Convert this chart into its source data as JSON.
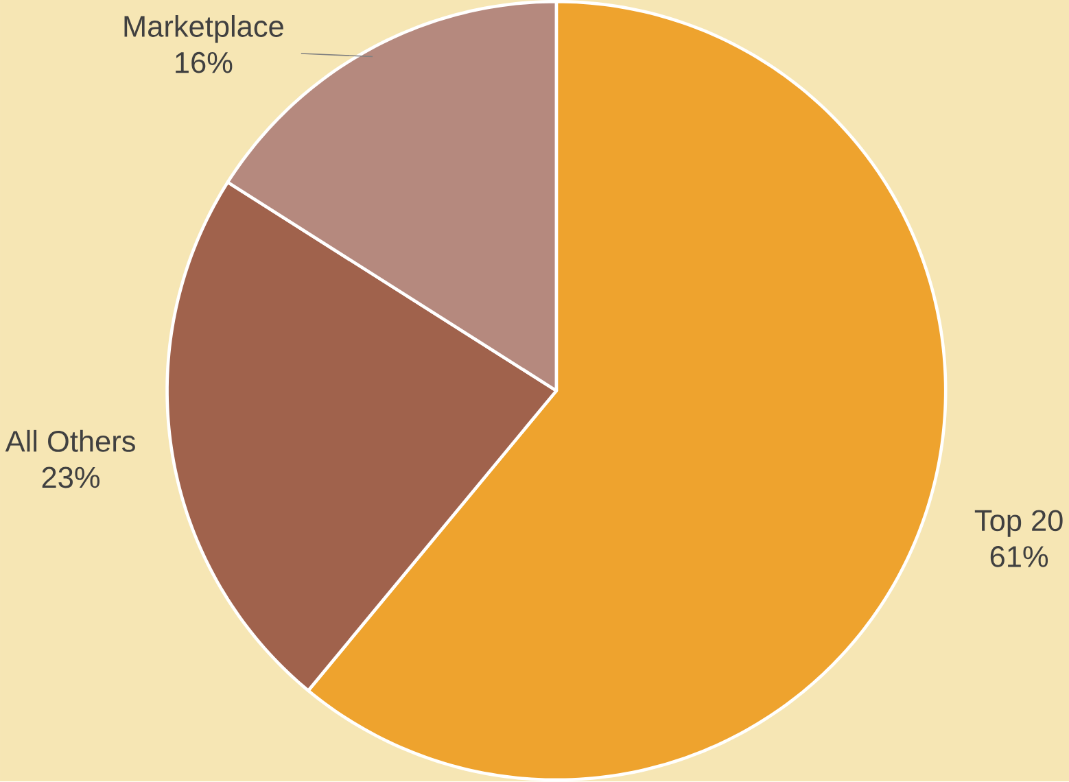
{
  "chart_data": {
    "type": "pie",
    "categories": [
      "Top 20",
      "All Others",
      "Marketplace"
    ],
    "values": [
      61,
      23,
      16
    ],
    "value_labels": [
      "61%",
      "23%",
      "16%"
    ],
    "colors": [
      "#eea32e",
      "#a0624c",
      "#b5897e"
    ]
  }
}
